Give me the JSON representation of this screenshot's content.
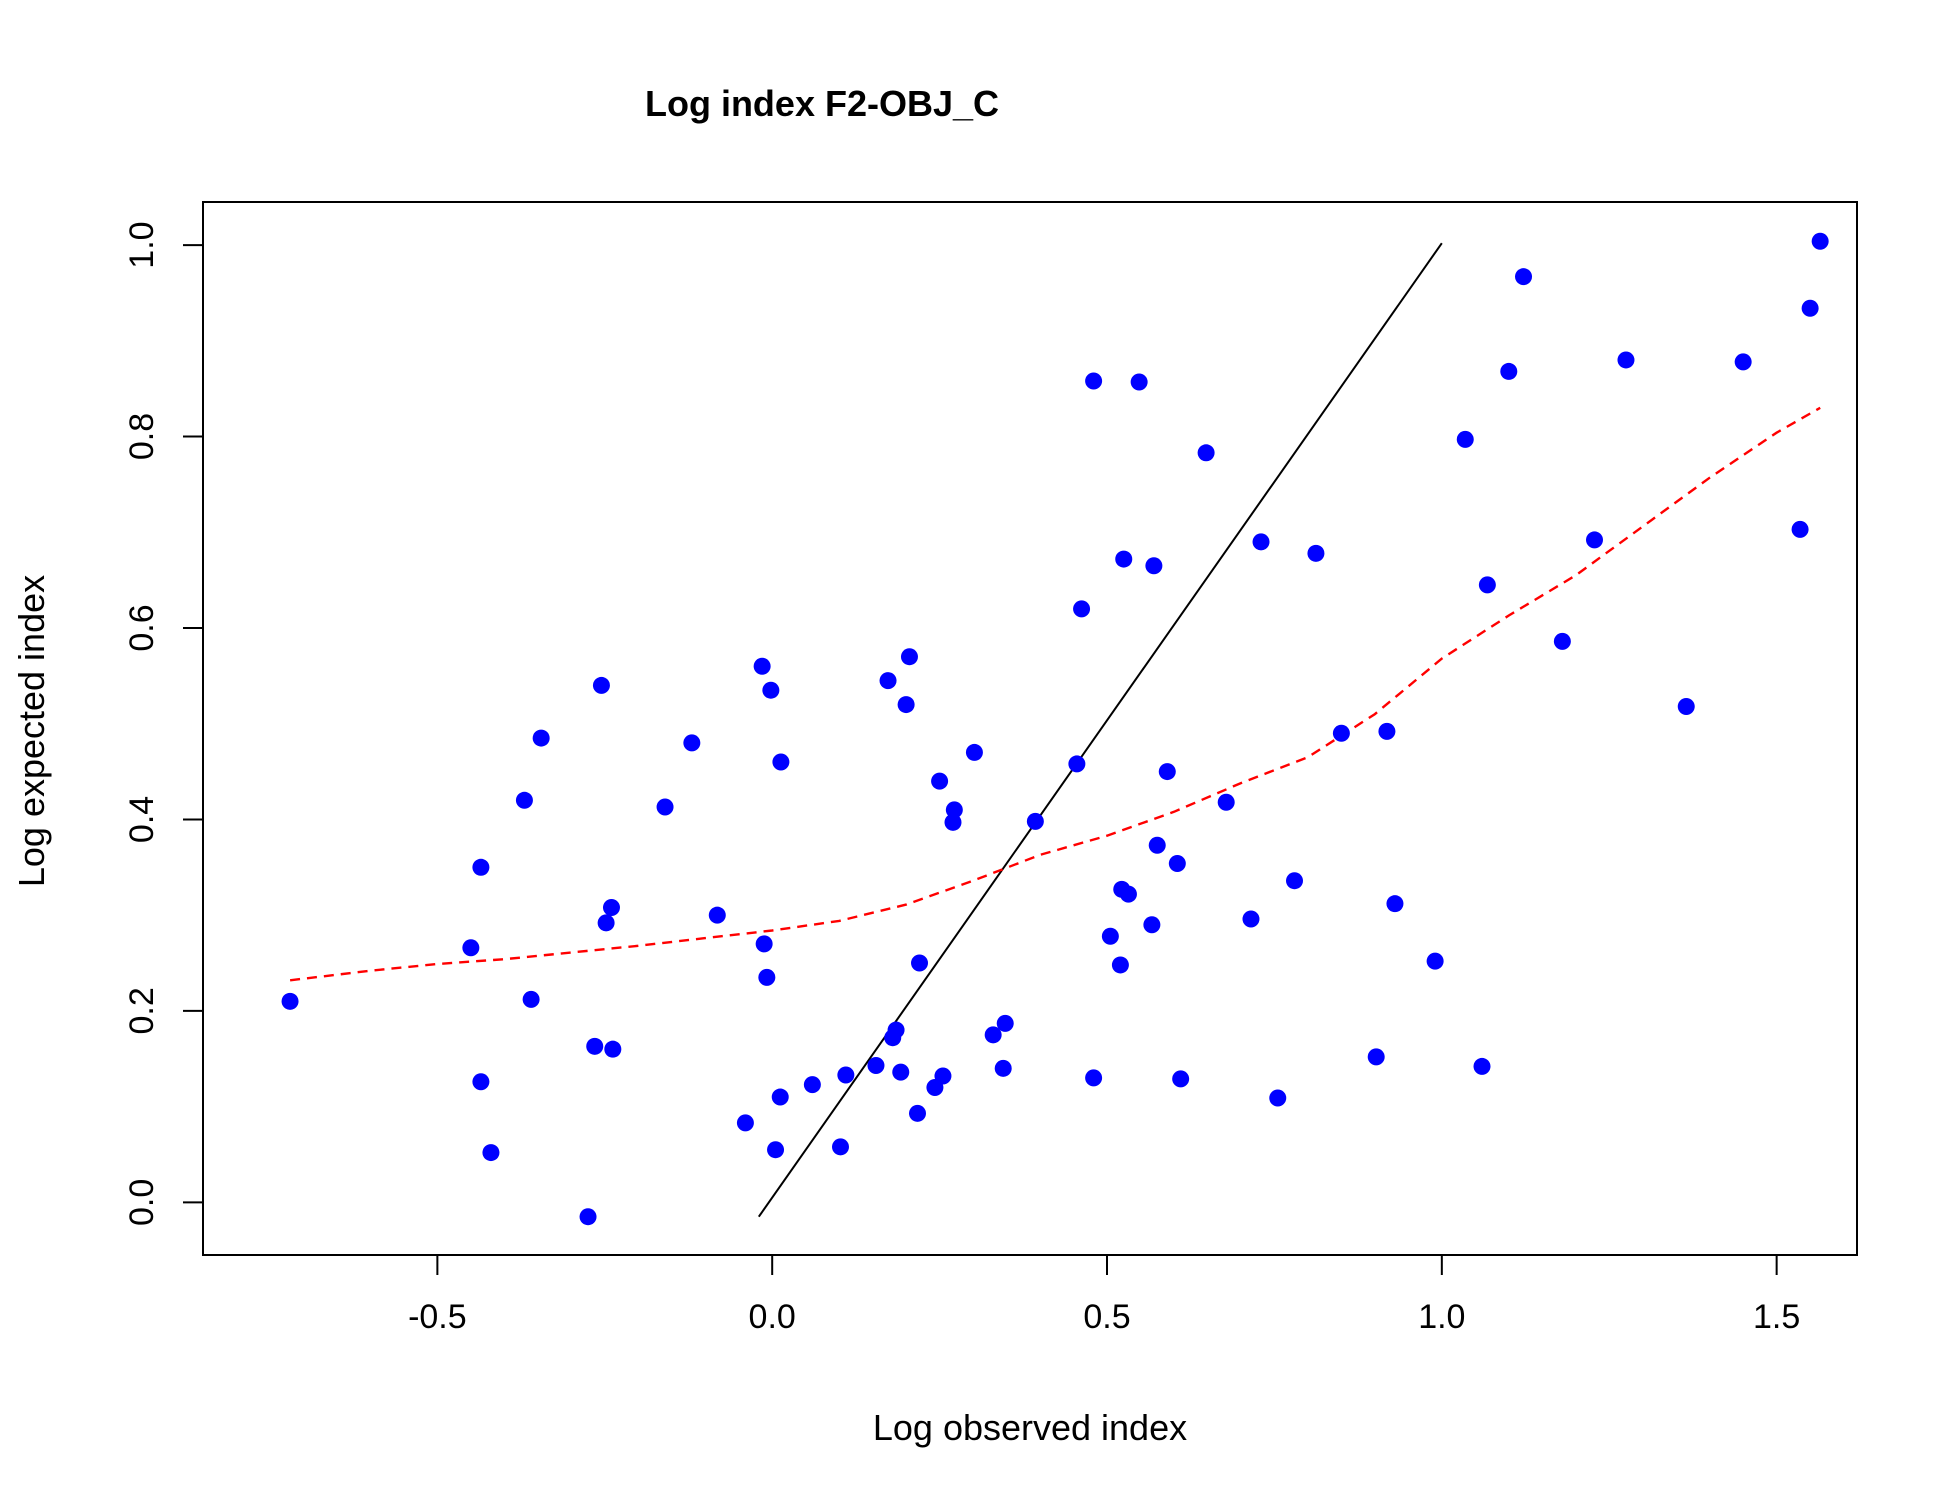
{
  "chart_data": {
    "type": "scatter",
    "title": "Log index F2-OBJ_C",
    "xlabel": "Log observed index",
    "ylabel": "Log expected index",
    "xlim": [
      -0.85,
      1.62
    ],
    "ylim": [
      -0.055,
      1.045
    ],
    "x_ticks": [
      -0.5,
      0.0,
      0.5,
      1.0,
      1.5
    ],
    "x_tick_labels": [
      "-0.5",
      "0.0",
      "0.5",
      "1.0",
      "1.5"
    ],
    "y_ticks": [
      0.0,
      0.2,
      0.4,
      0.6,
      0.8,
      1.0
    ],
    "y_tick_labels": [
      "0.0",
      "0.2",
      "0.4",
      "0.6",
      "0.8",
      "1.0"
    ],
    "grid": false,
    "colors": {
      "points": "#0000ff",
      "smooth": "#ff0000",
      "identity": "#000000"
    },
    "points": [
      [
        -0.72,
        0.21
      ],
      [
        -0.45,
        0.266
      ],
      [
        -0.435,
        0.35
      ],
      [
        -0.435,
        0.126
      ],
      [
        -0.42,
        0.052
      ],
      [
        -0.37,
        0.42
      ],
      [
        -0.36,
        0.212
      ],
      [
        -0.345,
        0.485
      ],
      [
        -0.275,
        -0.015
      ],
      [
        -0.265,
        0.163
      ],
      [
        -0.255,
        0.54
      ],
      [
        -0.248,
        0.292
      ],
      [
        -0.24,
        0.308
      ],
      [
        -0.238,
        0.16
      ],
      [
        -0.16,
        0.413
      ],
      [
        -0.12,
        0.48
      ],
      [
        -0.082,
        0.3
      ],
      [
        -0.04,
        0.083
      ],
      [
        -0.015,
        0.56
      ],
      [
        -0.012,
        0.27
      ],
      [
        -0.008,
        0.235
      ],
      [
        -0.002,
        0.535
      ],
      [
        0.005,
        0.055
      ],
      [
        0.012,
        0.11
      ],
      [
        0.013,
        0.46
      ],
      [
        0.06,
        0.123
      ],
      [
        0.102,
        0.058
      ],
      [
        0.11,
        0.133
      ],
      [
        0.155,
        0.143
      ],
      [
        0.173,
        0.545
      ],
      [
        0.18,
        0.172
      ],
      [
        0.185,
        0.18
      ],
      [
        0.192,
        0.136
      ],
      [
        0.2,
        0.52
      ],
      [
        0.205,
        0.57
      ],
      [
        0.217,
        0.093
      ],
      [
        0.22,
        0.25
      ],
      [
        0.243,
        0.12
      ],
      [
        0.25,
        0.44
      ],
      [
        0.255,
        0.132
      ],
      [
        0.27,
        0.397
      ],
      [
        0.272,
        0.41
      ],
      [
        0.302,
        0.47
      ],
      [
        0.33,
        0.175
      ],
      [
        0.345,
        0.14
      ],
      [
        0.348,
        0.187
      ],
      [
        0.393,
        0.398
      ],
      [
        0.455,
        0.458
      ],
      [
        0.462,
        0.62
      ],
      [
        0.48,
        0.13
      ],
      [
        0.48,
        0.858
      ],
      [
        0.505,
        0.278
      ],
      [
        0.52,
        0.248
      ],
      [
        0.522,
        0.327
      ],
      [
        0.525,
        0.672
      ],
      [
        0.532,
        0.322
      ],
      [
        0.548,
        0.857
      ],
      [
        0.567,
        0.29
      ],
      [
        0.57,
        0.665
      ],
      [
        0.575,
        0.373
      ],
      [
        0.59,
        0.45
      ],
      [
        0.605,
        0.354
      ],
      [
        0.61,
        0.129
      ],
      [
        0.648,
        0.783
      ],
      [
        0.678,
        0.418
      ],
      [
        0.715,
        0.296
      ],
      [
        0.73,
        0.69
      ],
      [
        0.755,
        0.109
      ],
      [
        0.78,
        0.336
      ],
      [
        0.812,
        0.678
      ],
      [
        0.85,
        0.49
      ],
      [
        0.902,
        0.152
      ],
      [
        0.918,
        0.492
      ],
      [
        0.93,
        0.312
      ],
      [
        0.99,
        0.252
      ],
      [
        1.035,
        0.797
      ],
      [
        1.06,
        0.142
      ],
      [
        1.068,
        0.645
      ],
      [
        1.1,
        0.868
      ],
      [
        1.122,
        0.967
      ],
      [
        1.18,
        0.586
      ],
      [
        1.228,
        0.692
      ],
      [
        1.275,
        0.88
      ],
      [
        1.365,
        0.518
      ],
      [
        1.45,
        0.878
      ],
      [
        1.535,
        0.703
      ],
      [
        1.55,
        0.934
      ],
      [
        1.565,
        1.004
      ]
    ],
    "identity_line": {
      "x": [
        -0.02,
        1.0
      ],
      "y": [
        -0.015,
        1.002
      ]
    },
    "smooth_line": {
      "x": [
        -0.72,
        -0.6,
        -0.5,
        -0.4,
        -0.3,
        -0.2,
        -0.1,
        0.0,
        0.1,
        0.2,
        0.3,
        0.4,
        0.5,
        0.6,
        0.7,
        0.8,
        0.9,
        1.0,
        1.1,
        1.2,
        1.3,
        1.4,
        1.5,
        1.565
      ],
      "y": [
        0.232,
        0.242,
        0.249,
        0.254,
        0.261,
        0.268,
        0.276,
        0.284,
        0.294,
        0.311,
        0.336,
        0.363,
        0.383,
        0.408,
        0.438,
        0.465,
        0.51,
        0.568,
        0.613,
        0.655,
        0.706,
        0.757,
        0.804,
        0.83
      ]
    }
  }
}
